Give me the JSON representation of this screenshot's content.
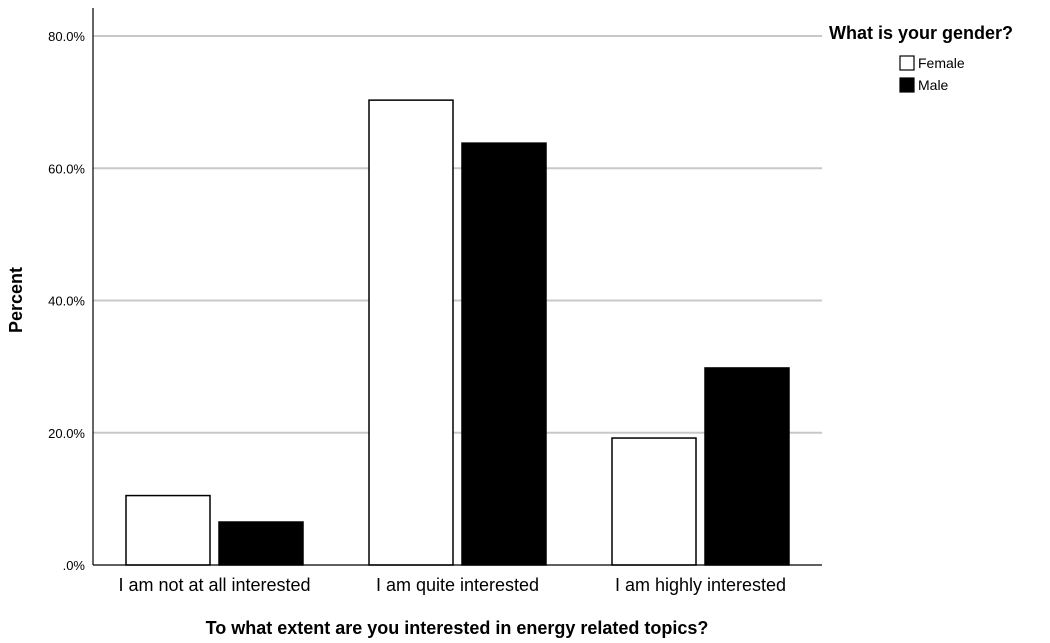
{
  "chart_data": {
    "type": "bar",
    "categories": [
      "I am not at all interested",
      "I am quite interested",
      "I am highly interested"
    ],
    "series": [
      {
        "name": "Female",
        "values": [
          10.5,
          70.3,
          19.2
        ],
        "color": "#ffffff"
      },
      {
        "name": "Male",
        "values": [
          6.5,
          63.8,
          29.8
        ],
        "color": "#000000"
      }
    ],
    "title": "",
    "xlabel": "To what extent are you interested in energy related topics?",
    "ylabel": "Percent",
    "ylim": [
      0,
      80
    ],
    "yticks": [
      0,
      20,
      40,
      60,
      80
    ],
    "ytick_labels": [
      ".0%",
      "20.0%",
      "40.0%",
      "60.0%",
      "80.0%"
    ],
    "grid": "horizontal",
    "legend_title": "What is your gender?",
    "legend_position": "top-right"
  }
}
